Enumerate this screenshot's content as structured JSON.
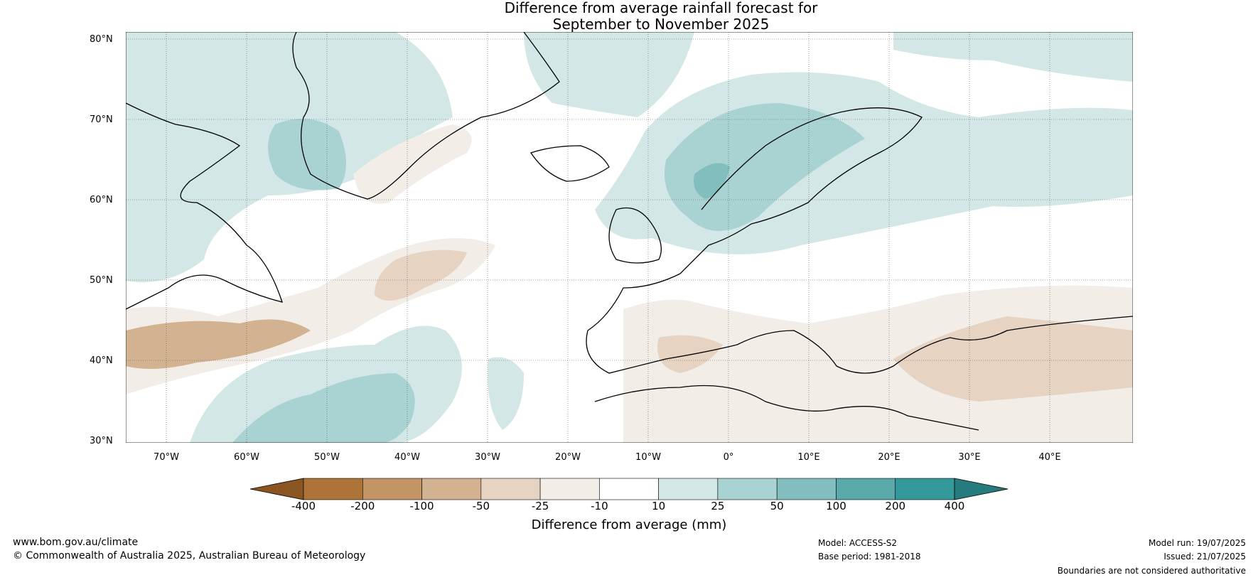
{
  "title_line1": "Difference from average rainfall forecast for",
  "title_line2": "September to November 2025",
  "lat_labels": [
    "80°N",
    "70°N",
    "60°N",
    "50°N",
    "40°N",
    "30°N"
  ],
  "lon_labels": [
    "70°W",
    "60°W",
    "50°W",
    "40°W",
    "30°W",
    "20°W",
    "10°W",
    "0°",
    "10°E",
    "20°E",
    "30°E",
    "40°E"
  ],
  "colorbar": {
    "title": "Difference from average (mm)",
    "ticks": [
      "-400",
      "-200",
      "-100",
      "-50",
      "-25",
      "-10",
      "10",
      "25",
      "50",
      "100",
      "200",
      "400"
    ],
    "colors": [
      "#8a5520",
      "#ad7339",
      "#c29466",
      "#d3b291",
      "#e6d3c2",
      "#f2ede7",
      "#ffffff",
      "#d3e8e6",
      "#a8d3d2",
      "#82bebd",
      "#5aa9aa",
      "#34999a",
      "#267b7c"
    ]
  },
  "footer": {
    "site": "www.bom.gov.au/climate",
    "copyright": "© Commonwealth of Australia 2025, Australian Bureau of Meteorology",
    "model": "Model: ACCESS-S2",
    "base_period": "Base period: 1981-2018",
    "model_run": "Model run: 19/07/2025",
    "issued": "Issued: 21/07/2025",
    "disclaimer": "Boundaries are not considered authoritative"
  }
}
